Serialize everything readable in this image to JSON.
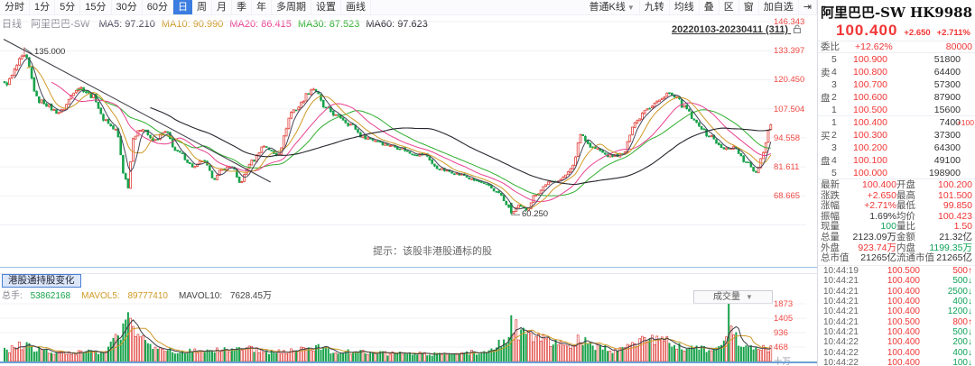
{
  "colors": {
    "up_red": "#e0413a",
    "down_green": "#17a24a",
    "axis_red": "#f04a45",
    "ma5": "#44445a",
    "ma10": "#cf9a28",
    "ma20": "#e8418f",
    "ma30": "#2fae2f",
    "ma60": "#26262e",
    "active_tab_blue": "#3b7de0",
    "pane_blue": "#6e9fd6"
  },
  "toolbar_left": {
    "items": [
      {
        "label": "分时"
      },
      {
        "label": "1分"
      },
      {
        "label": "5分"
      },
      {
        "label": "15分"
      },
      {
        "label": "30分"
      },
      {
        "label": "60分"
      },
      {
        "label": "日",
        "active": true
      },
      {
        "label": "周"
      },
      {
        "label": "月"
      },
      {
        "label": "季"
      },
      {
        "label": "年"
      },
      {
        "label": "多周期"
      },
      {
        "label": "设置"
      },
      {
        "label": "画线"
      }
    ]
  },
  "toolbar_right": {
    "items": [
      {
        "label": "普通K线",
        "dropdown": true
      },
      {
        "label": "九转"
      },
      {
        "label": "均线"
      },
      {
        "label": "叠"
      },
      {
        "label": "区"
      },
      {
        "label": "窗"
      },
      {
        "label": "加自选"
      },
      {
        "label": "⇥"
      }
    ]
  },
  "chart_header": {
    "period_label": "日线",
    "stock_label": "阿里巴巴-SW",
    "mas": [
      {
        "name": "MA5",
        "value": "97.210",
        "color": "#44445a"
      },
      {
        "name": "MA10",
        "value": "90.990",
        "color": "#cf9a28"
      },
      {
        "name": "MA20",
        "value": "86.415",
        "color": "#e8418f"
      },
      {
        "name": "MA30",
        "value": "87.523",
        "color": "#2fae2f"
      },
      {
        "name": "MA60",
        "value": "97.623",
        "color": "#26262e"
      }
    ],
    "range_label": "20220103-20230411 (311)",
    "hint": "提示：该股非港股通标的股",
    "high_label": "135.000",
    "low_label": "60.250"
  },
  "y_axis_labels": [
    "146.343",
    "133.397",
    "120.450",
    "107.504",
    "94.558",
    "81.611",
    "68.665"
  ],
  "volume_pane": {
    "tab": "港股通持股变化",
    "legend": [
      {
        "label": "总手:",
        "value": "53862168",
        "color": "#17a24a"
      },
      {
        "label": "MAVOL5:",
        "value": "89777410",
        "color": "#cf9a28"
      },
      {
        "label": "MAVOL10:",
        "value": "7628.45万",
        "color": "#444"
      }
    ],
    "selector": "成交量",
    "y_labels": [
      "1873",
      "1405",
      "936",
      "468"
    ],
    "unit": "十万"
  },
  "quote_panel": {
    "title": "阿里巴巴-SW HK9988",
    "price": "100.400",
    "change": "+2.650",
    "change_pct": "+2.711%",
    "weibi_label": "委比",
    "weibi_value": "+12.62%",
    "weibi_diff": "80000",
    "sell_side_chars": [
      "卖",
      "盘"
    ],
    "buy_side_chars": [
      "买",
      "盘"
    ],
    "sell": [
      {
        "n": "5",
        "price": "100.900",
        "vol": "51800"
      },
      {
        "n": "4",
        "price": "100.800",
        "vol": "64400"
      },
      {
        "n": "3",
        "price": "100.700",
        "vol": "57300"
      },
      {
        "n": "2",
        "price": "100.600",
        "vol": "87900"
      },
      {
        "n": "1",
        "price": "100.500",
        "vol": "15600"
      }
    ],
    "buy": [
      {
        "n": "1",
        "price": "100.400",
        "vol": "7400",
        "delta": "+100"
      },
      {
        "n": "2",
        "price": "100.300",
        "vol": "37300"
      },
      {
        "n": "3",
        "price": "100.200",
        "vol": "64300"
      },
      {
        "n": "4",
        "price": "100.100",
        "vol": "49100"
      },
      {
        "n": "5",
        "price": "100.000",
        "vol": "198900"
      }
    ],
    "stats": [
      [
        {
          "l": "最新",
          "v": "100.400",
          "c": "red"
        },
        {
          "l": "开盘",
          "v": "100.200",
          "c": "red"
        }
      ],
      [
        {
          "l": "涨跌",
          "v": "+2.650",
          "c": "red"
        },
        {
          "l": "最高",
          "v": "101.500",
          "c": "red"
        }
      ],
      [
        {
          "l": "涨幅",
          "v": "+2.71%",
          "c": "red"
        },
        {
          "l": "最低",
          "v": "99.850",
          "c": "red"
        }
      ],
      [
        {
          "l": "振幅",
          "v": "1.69%",
          "c": "dk"
        },
        {
          "l": "均价",
          "v": "100.423",
          "c": "red"
        }
      ],
      [
        {
          "l": "现量",
          "v": "100",
          "c": "grn"
        },
        {
          "l": "量比",
          "v": "1.50",
          "c": "red"
        }
      ],
      [
        {
          "l": "总量",
          "v": "2123.09万",
          "c": "dk"
        },
        {
          "l": "金额",
          "v": "21.32亿",
          "c": "dk"
        }
      ],
      [
        {
          "l": "外盘",
          "v": "923.74万",
          "c": "red"
        },
        {
          "l": "内盘",
          "v": "1199.35万",
          "c": "grn"
        }
      ],
      [
        {
          "l": "总市值",
          "v": "21265亿",
          "c": "dk"
        },
        {
          "l": "流通市值",
          "v": "21265亿",
          "c": "dk"
        }
      ]
    ],
    "ticks": [
      {
        "time": "10:44:19",
        "price": "100.500",
        "vol": "500",
        "dir": "up"
      },
      {
        "time": "10:44:21",
        "price": "100.400",
        "vol": "500",
        "dir": "down"
      },
      {
        "time": "10:44:21",
        "price": "100.400",
        "vol": "2500",
        "dir": "down"
      },
      {
        "time": "10:44:21",
        "price": "100.400",
        "vol": "400",
        "dir": "down"
      },
      {
        "time": "10:44:21",
        "price": "100.400",
        "vol": "1200",
        "dir": "down"
      },
      {
        "time": "10:44:21",
        "price": "100.500",
        "vol": "800",
        "dir": "up"
      },
      {
        "time": "10:44:21",
        "price": "100.400",
        "vol": "500",
        "dir": "down"
      },
      {
        "time": "10:44:22",
        "price": "100.400",
        "vol": "200",
        "dir": "down"
      },
      {
        "time": "10:44:22",
        "price": "100.400",
        "vol": "400",
        "dir": "down"
      },
      {
        "time": "10:44:22",
        "price": "100.400",
        "vol": "100",
        "dir": "down"
      },
      {
        "time": "10:44:22",
        "price": "100.400",
        "vol": "100",
        "dir": "down"
      }
    ]
  },
  "chart_data": {
    "type": "candlestick",
    "title": "阿里巴巴-SW HK9988 日线",
    "x_range_label": "20220103-20230411",
    "bars": 311,
    "y_axis_ticks": [
      146.343,
      133.397,
      120.45,
      107.504,
      94.558,
      81.611,
      68.665
    ],
    "marked_high": {
      "bar": 8,
      "value": 135.0
    },
    "marked_low": {
      "bar": 205,
      "value": 60.25
    },
    "last_close": 100.4,
    "prev_close": 97.75,
    "ma_values": {
      "MA5": 97.21,
      "MA10": 90.99,
      "MA20": 86.415,
      "MA30": 87.523,
      "MA60": 97.623
    },
    "price_anchors": [
      [
        0,
        118.5
      ],
      [
        8,
        130.5
      ],
      [
        14,
        111
      ],
      [
        22,
        106
      ],
      [
        30,
        117
      ],
      [
        36,
        113
      ],
      [
        40,
        103
      ],
      [
        45,
        98
      ],
      [
        49,
        76
      ],
      [
        50,
        72.8
      ],
      [
        52,
        95
      ],
      [
        56,
        99
      ],
      [
        60,
        93
      ],
      [
        65,
        97
      ],
      [
        70,
        88
      ],
      [
        77,
        81.5
      ],
      [
        80,
        84.5
      ],
      [
        85,
        76.5
      ],
      [
        88,
        80.5
      ],
      [
        92,
        82
      ],
      [
        95,
        74.5
      ],
      [
        100,
        84
      ],
      [
        105,
        91
      ],
      [
        110,
        87
      ],
      [
        117,
        107
      ],
      [
        125,
        116.5
      ],
      [
        130,
        107.5
      ],
      [
        135,
        104
      ],
      [
        140,
        100.5
      ],
      [
        145,
        95
      ],
      [
        150,
        93.5
      ],
      [
        155,
        91.5
      ],
      [
        160,
        90
      ],
      [
        165,
        87.5
      ],
      [
        170,
        87
      ],
      [
        175,
        81
      ],
      [
        180,
        79.5
      ],
      [
        185,
        78
      ],
      [
        190,
        75.5
      ],
      [
        195,
        73.5
      ],
      [
        200,
        70
      ],
      [
        203,
        65
      ],
      [
        205,
        61
      ],
      [
        208,
        64
      ],
      [
        211,
        62.5
      ],
      [
        215,
        69.5
      ],
      [
        220,
        74.5
      ],
      [
        225,
        76
      ],
      [
        230,
        82
      ],
      [
        233,
        96
      ],
      [
        238,
        90
      ],
      [
        245,
        86.5
      ],
      [
        250,
        87
      ],
      [
        255,
        101.5
      ],
      [
        260,
        108
      ],
      [
        265,
        111
      ],
      [
        268,
        114.5
      ],
      [
        272,
        112
      ],
      [
        275,
        108
      ],
      [
        280,
        101
      ],
      [
        285,
        95.5
      ],
      [
        291,
        89.5
      ],
      [
        295,
        90.5
      ],
      [
        300,
        83.5
      ],
      [
        304,
        79.5
      ],
      [
        307,
        88
      ],
      [
        309,
        97.75
      ],
      [
        310,
        100.4
      ]
    ],
    "volume_unit": "十万",
    "volume_axis_ticks": [
      1873,
      1405,
      936,
      468
    ],
    "volume_anchors": [
      [
        0,
        450
      ],
      [
        8,
        700
      ],
      [
        14,
        500
      ],
      [
        25,
        350
      ],
      [
        40,
        420
      ],
      [
        48,
        1300
      ],
      [
        50,
        1650
      ],
      [
        53,
        1200
      ],
      [
        58,
        700
      ],
      [
        70,
        450
      ],
      [
        85,
        500
      ],
      [
        100,
        520
      ],
      [
        110,
        380
      ],
      [
        120,
        500
      ],
      [
        125,
        620
      ],
      [
        135,
        420
      ],
      [
        145,
        380
      ],
      [
        160,
        330
      ],
      [
        175,
        300
      ],
      [
        185,
        350
      ],
      [
        195,
        400
      ],
      [
        203,
        900
      ],
      [
        205,
        1500
      ],
      [
        210,
        1100
      ],
      [
        215,
        900
      ],
      [
        222,
        800
      ],
      [
        228,
        700
      ],
      [
        233,
        950
      ],
      [
        240,
        600
      ],
      [
        247,
        420
      ],
      [
        255,
        850
      ],
      [
        262,
        900
      ],
      [
        268,
        850
      ],
      [
        275,
        600
      ],
      [
        285,
        500
      ],
      [
        291,
        700
      ],
      [
        293,
        1870
      ],
      [
        297,
        800
      ],
      [
        300,
        600
      ],
      [
        304,
        550
      ],
      [
        307,
        650
      ],
      [
        310,
        540
      ]
    ],
    "trendline": {
      "x1_bar": 0,
      "y1_price": 138.5,
      "x2_bar": 108,
      "y2_price": 74.8
    }
  }
}
